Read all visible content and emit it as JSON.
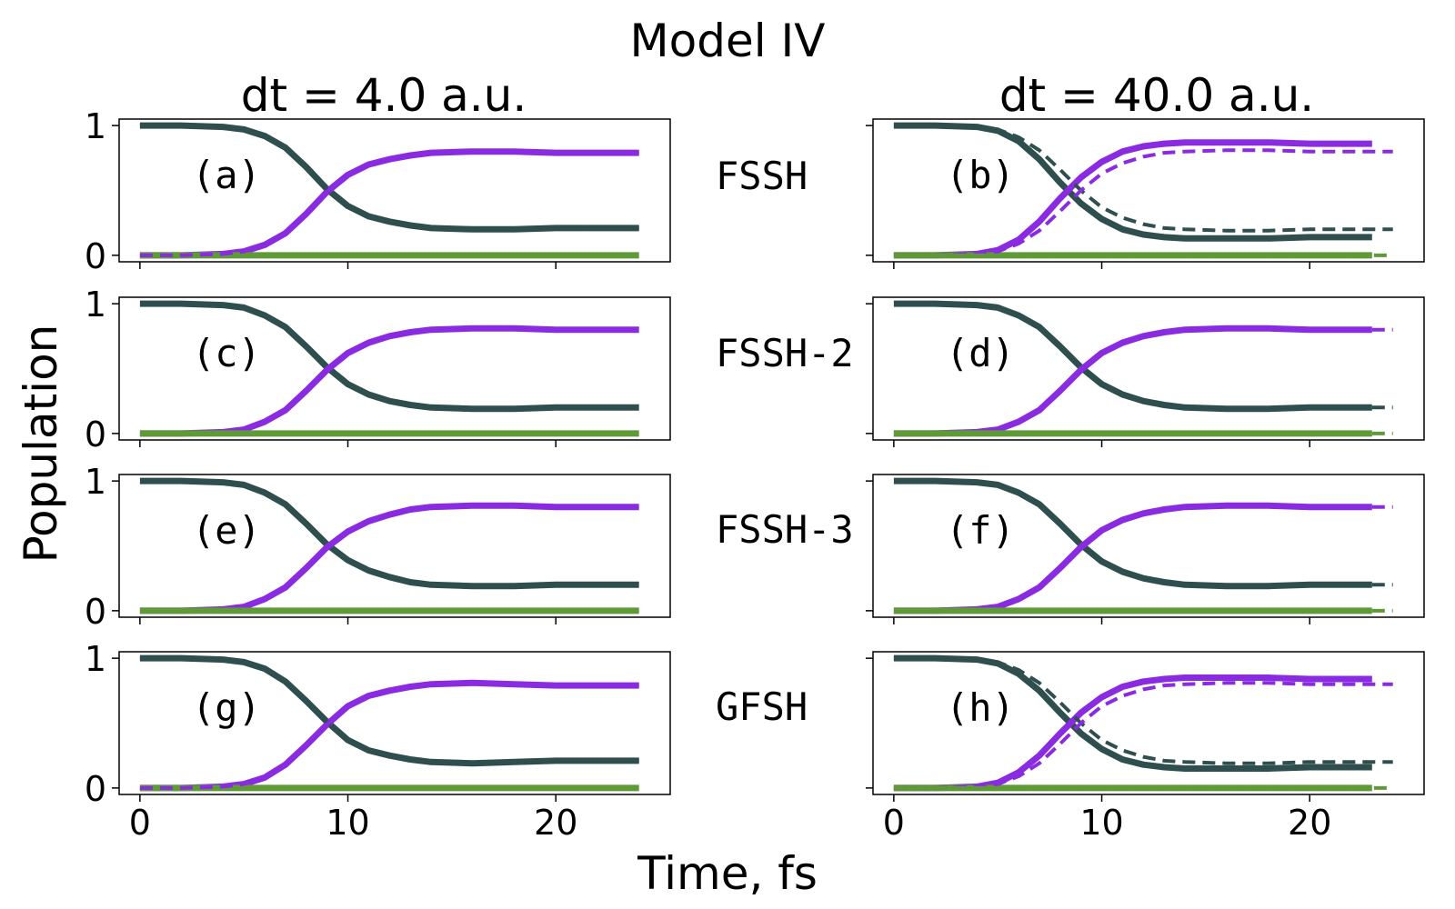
{
  "figure": {
    "title": "Model IV",
    "column_titles": [
      "dt = 4.0 a.u.",
      "dt = 40.0 a.u."
    ],
    "row_labels": [
      "FSSH",
      "FSSH-2",
      "FSSH-3",
      "GFSH"
    ],
    "ylabel": "Population",
    "xlabel": "Time, fs"
  },
  "colors": {
    "state0": "#2f4f4f",
    "state1": "#8a2be2",
    "state2": "#5e9a35",
    "method_label": "#0000ff"
  },
  "chart_data": [
    {
      "type": "line",
      "panel": "(a)",
      "x": [
        0,
        2,
        4,
        5,
        6,
        7,
        8,
        9,
        10,
        11,
        12,
        13,
        14,
        16,
        18,
        20,
        24
      ],
      "xlim": [
        -1,
        25.5
      ],
      "ylim": [
        -0.05,
        1.05
      ],
      "xticks": [
        0,
        10,
        20
      ],
      "yticks": [
        0,
        1
      ],
      "series": [
        {
          "style": "solid",
          "values": [
            1.0,
            1.0,
            0.99,
            0.97,
            0.92,
            0.83,
            0.68,
            0.51,
            0.38,
            0.3,
            0.26,
            0.23,
            0.21,
            0.2,
            0.2,
            0.21,
            0.21
          ]
        },
        {
          "style": "solid",
          "values": [
            0.0,
            0.0,
            0.01,
            0.03,
            0.08,
            0.17,
            0.32,
            0.49,
            0.62,
            0.7,
            0.74,
            0.77,
            0.79,
            0.8,
            0.8,
            0.79,
            0.79
          ]
        },
        {
          "style": "solid",
          "values": [
            0,
            0,
            0,
            0,
            0,
            0,
            0,
            0,
            0,
            0,
            0,
            0,
            0,
            0,
            0,
            0,
            0
          ]
        },
        {
          "style": "dashed",
          "values": [
            1.0,
            1.0,
            0.99,
            0.97,
            0.92,
            0.83,
            0.68,
            0.51,
            0.38,
            0.3,
            0.26,
            0.23,
            0.21,
            0.2,
            0.2,
            0.21,
            0.21
          ]
        },
        {
          "style": "dashed",
          "values": [
            0.0,
            0.0,
            0.01,
            0.03,
            0.08,
            0.17,
            0.32,
            0.49,
            0.62,
            0.7,
            0.74,
            0.77,
            0.79,
            0.8,
            0.8,
            0.79,
            0.79
          ]
        }
      ]
    },
    {
      "type": "line",
      "panel": "(b)",
      "x": [
        0,
        2,
        4,
        5,
        6,
        7,
        8,
        9,
        10,
        11,
        12,
        13,
        14,
        16,
        18,
        20,
        23
      ],
      "xlim": [
        -1,
        25.5
      ],
      "ylim": [
        -0.05,
        1.05
      ],
      "xticks": [
        0,
        10,
        20
      ],
      "yticks": [
        0,
        1
      ],
      "series": [
        {
          "style": "solid",
          "values": [
            1.0,
            1.0,
            0.99,
            0.96,
            0.88,
            0.74,
            0.56,
            0.4,
            0.28,
            0.2,
            0.16,
            0.14,
            0.13,
            0.13,
            0.13,
            0.14,
            0.14
          ]
        },
        {
          "style": "solid",
          "values": [
            0.0,
            0.0,
            0.01,
            0.04,
            0.12,
            0.26,
            0.44,
            0.6,
            0.72,
            0.8,
            0.84,
            0.86,
            0.87,
            0.87,
            0.87,
            0.86,
            0.86
          ]
        },
        {
          "style": "solid",
          "values": [
            0,
            0,
            0,
            0,
            0,
            0,
            0,
            0,
            0,
            0,
            0,
            0,
            0,
            0,
            0,
            0,
            0
          ]
        },
        {
          "style": "dashed",
          "x": [
            0,
            2,
            4,
            5,
            6,
            7,
            8,
            9,
            10,
            11,
            12,
            13,
            14,
            16,
            18,
            20,
            24
          ],
          "values": [
            1.0,
            1.0,
            0.99,
            0.97,
            0.91,
            0.81,
            0.66,
            0.5,
            0.37,
            0.29,
            0.24,
            0.21,
            0.2,
            0.19,
            0.19,
            0.2,
            0.2
          ]
        },
        {
          "style": "dashed",
          "x": [
            0,
            2,
            4,
            5,
            6,
            7,
            8,
            9,
            10,
            11,
            12,
            13,
            14,
            16,
            18,
            20,
            24
          ],
          "values": [
            0.0,
            0.0,
            0.01,
            0.03,
            0.09,
            0.19,
            0.34,
            0.5,
            0.63,
            0.71,
            0.76,
            0.79,
            0.8,
            0.81,
            0.81,
            0.8,
            0.8
          ]
        },
        {
          "style": "dashed",
          "x": [
            0,
            24
          ],
          "values": [
            0,
            0
          ]
        }
      ]
    },
    {
      "type": "line",
      "panel": "(c)",
      "x": [
        0,
        2,
        4,
        5,
        6,
        7,
        8,
        9,
        10,
        11,
        12,
        13,
        14,
        16,
        18,
        20,
        24
      ],
      "xlim": [
        -1,
        25.5
      ],
      "ylim": [
        -0.05,
        1.05
      ],
      "xticks": [
        0,
        10,
        20
      ],
      "yticks": [
        0,
        1
      ],
      "series": [
        {
          "style": "solid",
          "values": [
            1.0,
            1.0,
            0.99,
            0.97,
            0.91,
            0.82,
            0.67,
            0.51,
            0.38,
            0.3,
            0.25,
            0.22,
            0.2,
            0.19,
            0.19,
            0.2,
            0.2
          ]
        },
        {
          "style": "solid",
          "values": [
            0.0,
            0.0,
            0.01,
            0.03,
            0.09,
            0.18,
            0.33,
            0.49,
            0.62,
            0.7,
            0.75,
            0.78,
            0.8,
            0.81,
            0.81,
            0.8,
            0.8
          ]
        },
        {
          "style": "solid",
          "values": [
            0,
            0,
            0,
            0,
            0,
            0,
            0,
            0,
            0,
            0,
            0,
            0,
            0,
            0,
            0,
            0,
            0
          ]
        }
      ]
    },
    {
      "type": "line",
      "panel": "(d)",
      "x": [
        0,
        2,
        4,
        5,
        6,
        7,
        8,
        9,
        10,
        11,
        12,
        13,
        14,
        16,
        18,
        20,
        23
      ],
      "xlim": [
        -1,
        25.5
      ],
      "ylim": [
        -0.05,
        1.05
      ],
      "xticks": [
        0,
        10,
        20
      ],
      "yticks": [
        0,
        1
      ],
      "series": [
        {
          "style": "solid",
          "values": [
            1.0,
            1.0,
            0.99,
            0.97,
            0.91,
            0.82,
            0.67,
            0.51,
            0.38,
            0.3,
            0.25,
            0.22,
            0.2,
            0.19,
            0.19,
            0.2,
            0.2
          ]
        },
        {
          "style": "solid",
          "values": [
            0.0,
            0.0,
            0.01,
            0.03,
            0.09,
            0.18,
            0.33,
            0.49,
            0.62,
            0.7,
            0.75,
            0.78,
            0.8,
            0.81,
            0.81,
            0.8,
            0.8
          ]
        },
        {
          "style": "solid",
          "values": [
            0,
            0,
            0,
            0,
            0,
            0,
            0,
            0,
            0,
            0,
            0,
            0,
            0,
            0,
            0,
            0,
            0
          ]
        },
        {
          "style": "dashed",
          "x": [
            23,
            24
          ],
          "values": [
            0.2,
            0.2
          ]
        },
        {
          "style": "dashed",
          "x": [
            23,
            24
          ],
          "values": [
            0.8,
            0.8
          ]
        },
        {
          "style": "dashed",
          "x": [
            23,
            24
          ],
          "values": [
            0,
            0
          ]
        }
      ]
    },
    {
      "type": "line",
      "panel": "(e)",
      "x": [
        0,
        2,
        4,
        5,
        6,
        7,
        8,
        9,
        10,
        11,
        12,
        13,
        14,
        16,
        18,
        20,
        24
      ],
      "xlim": [
        -1,
        25.5
      ],
      "ylim": [
        -0.05,
        1.05
      ],
      "xticks": [
        0,
        10,
        20
      ],
      "yticks": [
        0,
        1
      ],
      "series": [
        {
          "style": "solid",
          "values": [
            1.0,
            1.0,
            0.99,
            0.97,
            0.91,
            0.82,
            0.67,
            0.51,
            0.39,
            0.31,
            0.26,
            0.22,
            0.2,
            0.19,
            0.19,
            0.2,
            0.2
          ]
        },
        {
          "style": "solid",
          "values": [
            0.0,
            0.0,
            0.01,
            0.03,
            0.09,
            0.18,
            0.33,
            0.49,
            0.61,
            0.69,
            0.74,
            0.78,
            0.8,
            0.81,
            0.81,
            0.8,
            0.8
          ]
        },
        {
          "style": "solid",
          "values": [
            0,
            0,
            0,
            0,
            0,
            0,
            0,
            0,
            0,
            0,
            0,
            0,
            0,
            0,
            0,
            0,
            0
          ]
        }
      ]
    },
    {
      "type": "line",
      "panel": "(f)",
      "x": [
        0,
        2,
        4,
        5,
        6,
        7,
        8,
        9,
        10,
        11,
        12,
        13,
        14,
        16,
        18,
        20,
        23
      ],
      "xlim": [
        -1,
        25.5
      ],
      "ylim": [
        -0.05,
        1.05
      ],
      "xticks": [
        0,
        10,
        20
      ],
      "yticks": [
        0,
        1
      ],
      "series": [
        {
          "style": "solid",
          "values": [
            1.0,
            1.0,
            0.99,
            0.97,
            0.91,
            0.82,
            0.67,
            0.51,
            0.38,
            0.3,
            0.25,
            0.22,
            0.2,
            0.19,
            0.19,
            0.2,
            0.2
          ]
        },
        {
          "style": "solid",
          "values": [
            0.0,
            0.0,
            0.01,
            0.03,
            0.09,
            0.18,
            0.33,
            0.49,
            0.62,
            0.7,
            0.75,
            0.78,
            0.8,
            0.81,
            0.81,
            0.8,
            0.8
          ]
        },
        {
          "style": "solid",
          "values": [
            0,
            0,
            0,
            0,
            0,
            0,
            0,
            0,
            0,
            0,
            0,
            0,
            0,
            0,
            0,
            0,
            0
          ]
        },
        {
          "style": "dashed",
          "x": [
            23,
            24
          ],
          "values": [
            0.2,
            0.2
          ]
        },
        {
          "style": "dashed",
          "x": [
            23,
            24
          ],
          "values": [
            0.8,
            0.8
          ]
        },
        {
          "style": "dashed",
          "x": [
            23,
            24
          ],
          "values": [
            0,
            0
          ]
        }
      ]
    },
    {
      "type": "line",
      "panel": "(g)",
      "x": [
        0,
        2,
        4,
        5,
        6,
        7,
        8,
        9,
        10,
        11,
        12,
        13,
        14,
        16,
        18,
        20,
        24
      ],
      "xlim": [
        -1,
        25.5
      ],
      "ylim": [
        -0.05,
        1.05
      ],
      "xticks": [
        0,
        10,
        20
      ],
      "yticks": [
        0,
        1
      ],
      "series": [
        {
          "style": "solid",
          "values": [
            1.0,
            1.0,
            0.99,
            0.97,
            0.92,
            0.82,
            0.67,
            0.51,
            0.37,
            0.29,
            0.25,
            0.22,
            0.2,
            0.19,
            0.2,
            0.21,
            0.21
          ]
        },
        {
          "style": "solid",
          "values": [
            0.0,
            0.0,
            0.01,
            0.03,
            0.08,
            0.18,
            0.33,
            0.49,
            0.63,
            0.71,
            0.75,
            0.78,
            0.8,
            0.81,
            0.8,
            0.79,
            0.79
          ]
        },
        {
          "style": "solid",
          "values": [
            0,
            0,
            0,
            0,
            0,
            0,
            0,
            0,
            0,
            0,
            0,
            0,
            0,
            0,
            0,
            0,
            0
          ]
        },
        {
          "style": "dashed",
          "values": [
            1.0,
            1.0,
            0.99,
            0.97,
            0.92,
            0.82,
            0.67,
            0.51,
            0.37,
            0.29,
            0.25,
            0.22,
            0.2,
            0.19,
            0.2,
            0.21,
            0.21
          ]
        },
        {
          "style": "dashed",
          "values": [
            0.0,
            0.0,
            0.01,
            0.03,
            0.08,
            0.18,
            0.33,
            0.49,
            0.63,
            0.71,
            0.75,
            0.78,
            0.8,
            0.81,
            0.8,
            0.79,
            0.79
          ]
        }
      ]
    },
    {
      "type": "line",
      "panel": "(h)",
      "x": [
        0,
        2,
        4,
        5,
        6,
        7,
        8,
        9,
        10,
        11,
        12,
        13,
        14,
        16,
        18,
        20,
        23
      ],
      "xlim": [
        -1,
        25.5
      ],
      "ylim": [
        -0.05,
        1.05
      ],
      "xticks": [
        0,
        10,
        20
      ],
      "yticks": [
        0,
        1
      ],
      "series": [
        {
          "style": "solid",
          "values": [
            1.0,
            1.0,
            0.99,
            0.96,
            0.88,
            0.75,
            0.58,
            0.42,
            0.3,
            0.22,
            0.18,
            0.16,
            0.15,
            0.15,
            0.15,
            0.16,
            0.16
          ]
        },
        {
          "style": "solid",
          "values": [
            0.0,
            0.0,
            0.01,
            0.04,
            0.12,
            0.25,
            0.42,
            0.58,
            0.7,
            0.78,
            0.82,
            0.84,
            0.85,
            0.85,
            0.85,
            0.84,
            0.84
          ]
        },
        {
          "style": "solid",
          "values": [
            0,
            0,
            0,
            0,
            0,
            0,
            0,
            0,
            0,
            0,
            0,
            0,
            0,
            0,
            0,
            0,
            0
          ]
        },
        {
          "style": "dashed",
          "x": [
            0,
            2,
            4,
            5,
            6,
            7,
            8,
            9,
            10,
            11,
            12,
            13,
            14,
            16,
            18,
            20,
            24
          ],
          "values": [
            1.0,
            1.0,
            0.99,
            0.97,
            0.91,
            0.81,
            0.66,
            0.5,
            0.37,
            0.29,
            0.24,
            0.21,
            0.2,
            0.19,
            0.19,
            0.2,
            0.2
          ]
        },
        {
          "style": "dashed",
          "x": [
            0,
            2,
            4,
            5,
            6,
            7,
            8,
            9,
            10,
            11,
            12,
            13,
            14,
            16,
            18,
            20,
            24
          ],
          "values": [
            0.0,
            0.0,
            0.01,
            0.03,
            0.09,
            0.19,
            0.34,
            0.5,
            0.63,
            0.71,
            0.76,
            0.79,
            0.8,
            0.81,
            0.81,
            0.8,
            0.8
          ]
        },
        {
          "style": "dashed",
          "x": [
            0,
            24
          ],
          "values": [
            0,
            0
          ]
        }
      ]
    }
  ]
}
